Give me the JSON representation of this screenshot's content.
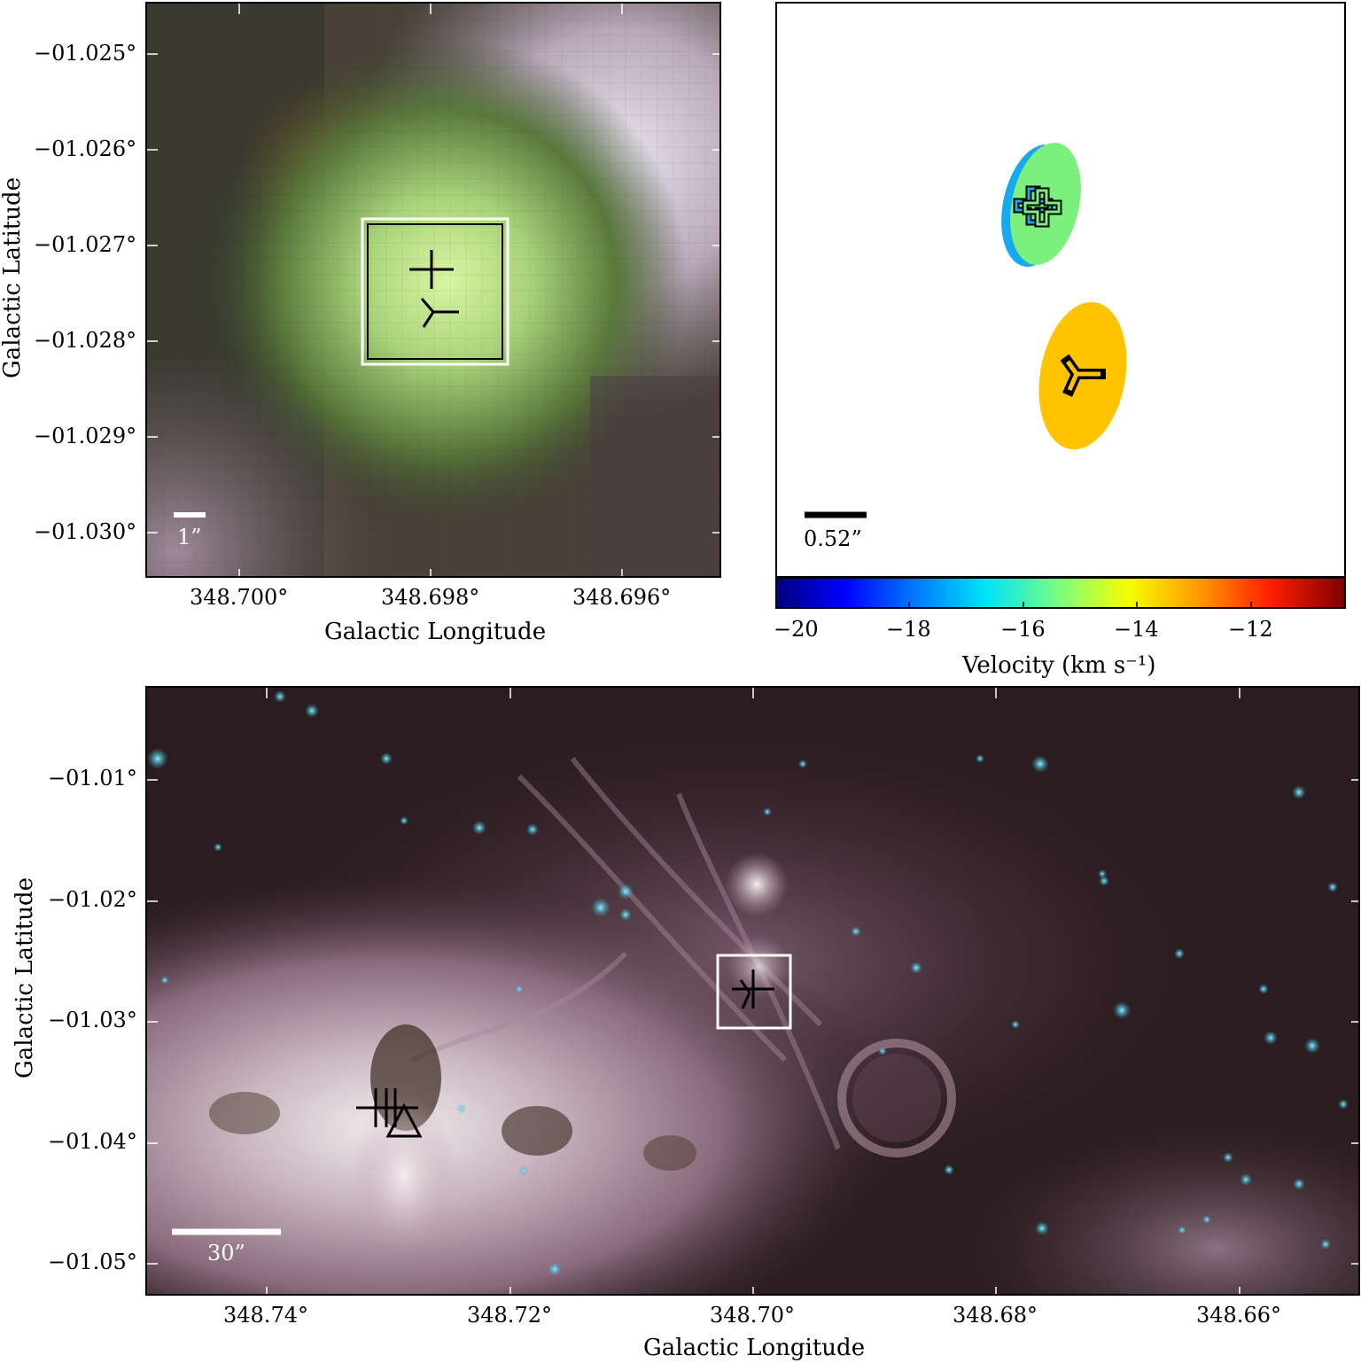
{
  "top_left": {
    "y_ticks": [
      "−01.025°",
      "−01.026°",
      "−01.027°",
      "−01.028°",
      "−01.029°",
      "−01.030°"
    ],
    "x_ticks": [
      "348.700°",
      "348.698°",
      "348.696°"
    ],
    "xlabel": "Galactic Longitude",
    "ylabel": "Galactic Latitude",
    "scalebar": "1”"
  },
  "top_right": {
    "scalebar": "0.52”",
    "colorbar_ticks": [
      "−20",
      "−18",
      "−16",
      "−14",
      "−12"
    ],
    "colorbar_label": "Velocity (km s⁻¹)",
    "colors": {
      "ellipse_blue": "#17a9ee",
      "ellipse_green": "#7cf07c",
      "ellipse_orange": "#ffc300"
    }
  },
  "bottom": {
    "y_ticks": [
      "−01.01°",
      "−01.02°",
      "−01.03°",
      "−01.04°",
      "−01.05°"
    ],
    "x_ticks": [
      "348.74°",
      "348.72°",
      "348.70°",
      "348.68°",
      "348.66°"
    ],
    "xlabel": "Galactic Longitude",
    "ylabel": "Galactic Latitude",
    "scalebar": "30”"
  }
}
